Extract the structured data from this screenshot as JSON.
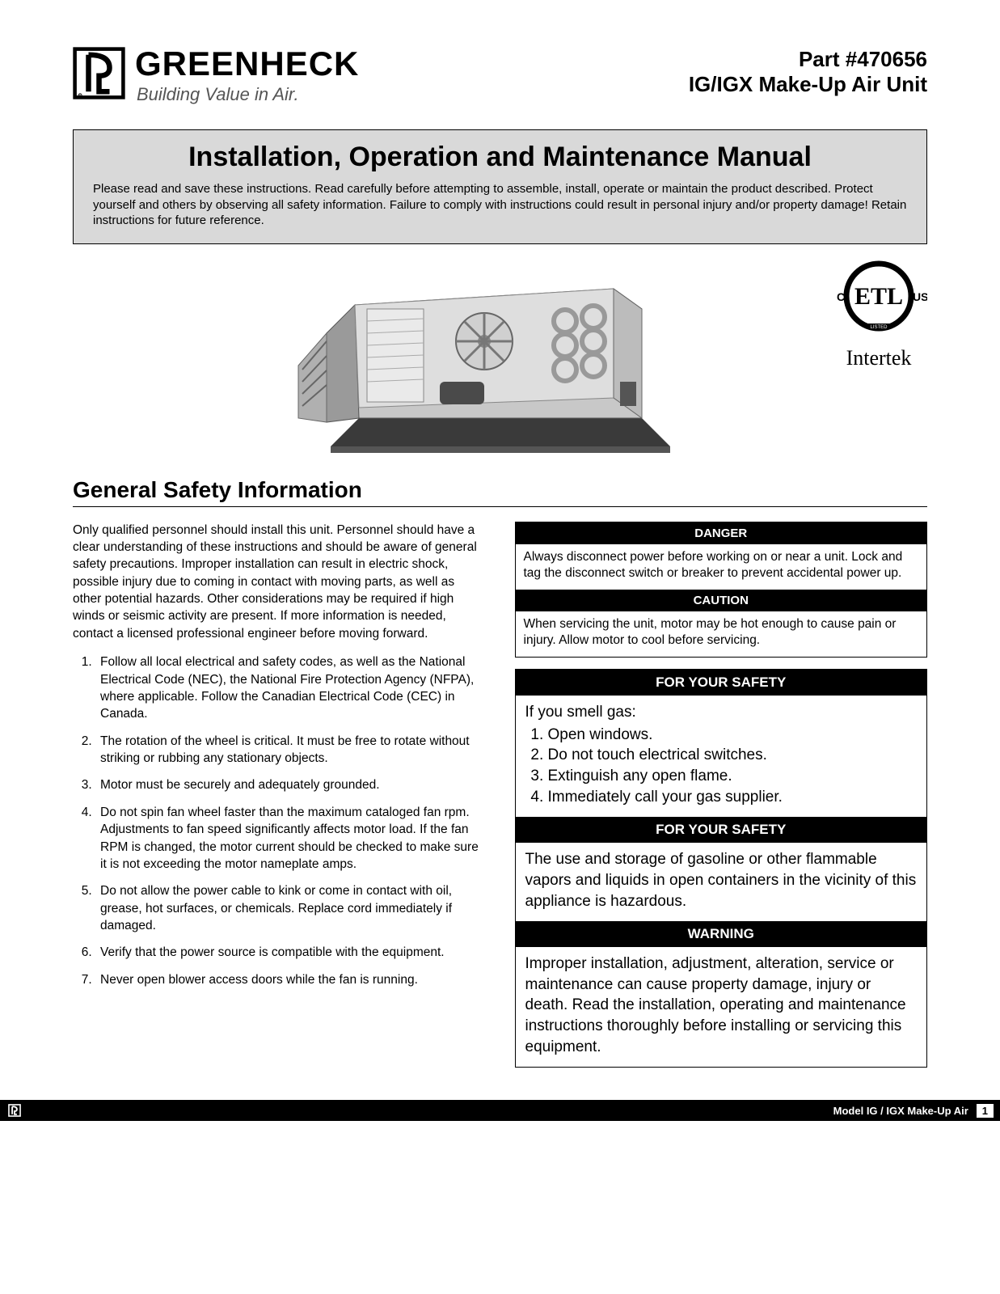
{
  "brand": {
    "name": "GREENHECK",
    "tagline": "Building Value in Air."
  },
  "part": {
    "number": "Part #470656",
    "model": "IG/IGX Make-Up Air Unit"
  },
  "titleBox": {
    "heading": "Installation, Operation and Maintenance Manual",
    "body": "Please read and save these instructions. Read carefully before attempting to assemble, install, operate or maintain the product described. Protect yourself and others by observing all safety information. Failure to comply with instructions could result in personal injury and/or property damage! Retain instructions for future reference."
  },
  "cert": {
    "label": "Intertek"
  },
  "gsi": {
    "heading": "General Safety Information",
    "intro": "Only qualified personnel should install this unit. Personnel should have a clear understanding of these instructions and should be aware of general safety precautions. Improper installation can result in electric shock, possible injury due to coming in contact with moving parts, as well as other potential hazards. Other considerations may be required if high winds or seismic activity are present. If more information is needed, contact a licensed professional engineer before moving forward.",
    "items": [
      "Follow all local electrical and safety codes, as well as the National Electrical Code (NEC), the National Fire Protection Agency (NFPA), where applicable. Follow the Canadian Electrical Code (CEC) in Canada.",
      "The rotation of the wheel is critical. It must be free to rotate without striking or rubbing any stationary objects.",
      "Motor must be securely and adequately grounded.",
      "Do not spin fan wheel faster than the maximum cataloged fan rpm. Adjustments to fan speed significantly affects motor load. If the fan RPM is changed, the motor current should be checked to make sure it is not exceeding the motor nameplate amps.",
      "Do not allow the power cable to kink or come in contact with oil, grease, hot surfaces, or chemicals. Replace cord immediately if damaged.",
      "Verify that the power source is compatible with the equipment.",
      "Never open blower access doors while the fan is running."
    ]
  },
  "boxes": {
    "danger": {
      "head": "DANGER",
      "body": "Always disconnect power before working on or near a unit. Lock and tag the disconnect switch or breaker to prevent accidental power up."
    },
    "caution": {
      "head": "CAUTION",
      "body": "When servicing the unit, motor may be hot enough to cause pain or injury. Allow motor to cool before servicing."
    },
    "safety1": {
      "head": "FOR YOUR SAFETY",
      "lead": "If you smell gas:",
      "items": [
        "Open windows.",
        "Do not touch electrical switches.",
        "Extinguish any open flame.",
        "Immediately call your gas supplier."
      ]
    },
    "safety2": {
      "head": "FOR YOUR SAFETY",
      "body": "The use and storage of gasoline or other flammable vapors and liquids in open containers in the vicinity of this appliance is hazardous."
    },
    "warning": {
      "head": "WARNING",
      "body": "Improper installation, adjustment, alteration, service or maintenance can cause property damage, injury or death. Read the installation, operating and maintenance instructions thoroughly before installing or servicing this equipment."
    }
  },
  "footer": {
    "model": "Model IG / IGX Make-Up Air",
    "page": "1"
  },
  "colors": {
    "boxBg": "#d9d9d9",
    "black": "#000000",
    "white": "#ffffff"
  }
}
